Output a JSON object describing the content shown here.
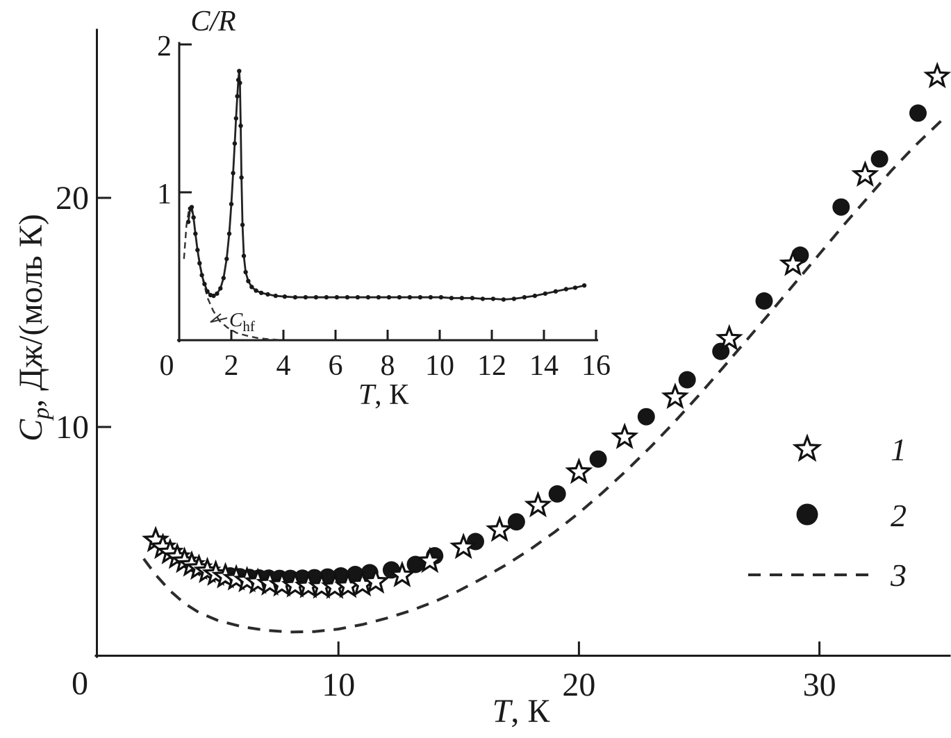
{
  "chart_data": [
    {
      "id": "main",
      "type": "scatter",
      "title": "",
      "xlabel": {
        "symbol": "T",
        "rest": ", К"
      },
      "ylabel": {
        "symbol": "C",
        "sub": "p",
        "rest": ", Дж/(моль К)"
      },
      "xlim": [
        0,
        35.4
      ],
      "ylim": [
        0,
        27.3
      ],
      "grid": false,
      "xticks": {
        "origin_label": "0",
        "values": [
          10,
          20,
          30
        ],
        "labels": [
          "10",
          "20",
          "30"
        ]
      },
      "yticks": {
        "values": [
          10,
          20
        ],
        "labels": [
          "10",
          "20"
        ]
      },
      "legend": {
        "position": "right-middle",
        "items": [
          {
            "label": "1",
            "marker": "open-star"
          },
          {
            "label": "2",
            "marker": "filled-circle"
          },
          {
            "label": "3",
            "marker": "dashed-line"
          }
        ]
      },
      "series": [
        {
          "name": "1",
          "marker": "open-star",
          "points": [
            [
              2.4,
              5.05
            ],
            [
              2.7,
              4.75
            ],
            [
              3.0,
              4.52
            ],
            [
              3.3,
              4.32
            ],
            [
              3.6,
              4.14
            ],
            [
              3.9,
              3.98
            ],
            [
              4.2,
              3.84
            ],
            [
              4.55,
              3.7
            ],
            [
              4.9,
              3.58
            ],
            [
              5.3,
              3.47
            ],
            [
              5.75,
              3.38
            ],
            [
              6.2,
              3.3
            ],
            [
              6.65,
              3.23
            ],
            [
              7.15,
              3.16
            ],
            [
              7.65,
              3.11
            ],
            [
              8.2,
              3.07
            ],
            [
              8.75,
              3.04
            ],
            [
              9.3,
              3.02
            ],
            [
              9.85,
              3.01
            ],
            [
              10.4,
              3.05
            ],
            [
              11.0,
              3.12
            ],
            [
              11.55,
              3.24
            ],
            [
              12.65,
              3.52
            ],
            [
              13.8,
              4.14
            ],
            [
              15.2,
              4.75
            ],
            [
              16.7,
              5.5
            ],
            [
              18.3,
              6.57
            ],
            [
              20.0,
              8.03
            ],
            [
              21.9,
              9.55
            ],
            [
              24.0,
              11.3
            ],
            [
              26.25,
              13.85
            ],
            [
              28.9,
              17.1
            ],
            [
              31.9,
              21.0
            ],
            [
              34.9,
              25.3
            ]
          ]
        },
        {
          "name": "2",
          "marker": "filled-circle",
          "points": [
            [
              5.5,
              3.5
            ],
            [
              5.9,
              3.46
            ],
            [
              6.3,
              3.43
            ],
            [
              6.7,
              3.41
            ],
            [
              7.1,
              3.4
            ],
            [
              7.55,
              3.39
            ],
            [
              8.0,
              3.39
            ],
            [
              8.5,
              3.4
            ],
            [
              9.0,
              3.42
            ],
            [
              9.55,
              3.45
            ],
            [
              10.1,
              3.5
            ],
            [
              10.7,
              3.56
            ],
            [
              11.3,
              3.64
            ],
            [
              12.2,
              3.76
            ],
            [
              13.2,
              4.0
            ],
            [
              14.0,
              4.38
            ],
            [
              15.7,
              5.0
            ],
            [
              17.4,
              5.86
            ],
            [
              19.1,
              7.08
            ],
            [
              20.8,
              8.6
            ],
            [
              22.8,
              10.45
            ],
            [
              24.5,
              12.06
            ],
            [
              25.9,
              13.3
            ],
            [
              27.7,
              15.5
            ],
            [
              29.2,
              17.5
            ],
            [
              30.9,
              19.6
            ],
            [
              32.5,
              21.7
            ],
            [
              34.1,
              23.7
            ]
          ]
        },
        {
          "name": "3",
          "marker": "none",
          "line": "dashed",
          "points": [
            [
              1.9,
              4.25
            ],
            [
              2.4,
              3.55
            ],
            [
              3.0,
              2.85
            ],
            [
              3.6,
              2.3
            ],
            [
              4.2,
              1.9
            ],
            [
              5.0,
              1.55
            ],
            [
              6.0,
              1.28
            ],
            [
              7.0,
              1.12
            ],
            [
              8.0,
              1.05
            ],
            [
              9.0,
              1.07
            ],
            [
              10.0,
              1.18
            ],
            [
              11.0,
              1.38
            ],
            [
              12.0,
              1.65
            ],
            [
              13.0,
              1.98
            ],
            [
              14.0,
              2.38
            ],
            [
              15.0,
              2.85
            ],
            [
              16.0,
              3.4
            ],
            [
              17.0,
              4.0
            ],
            [
              18.0,
              4.68
            ],
            [
              19.0,
              5.42
            ],
            [
              20.0,
              6.25
            ],
            [
              21.0,
              7.15
            ],
            [
              22.0,
              8.12
            ],
            [
              23.0,
              9.15
            ],
            [
              24.0,
              10.25
            ],
            [
              25.0,
              11.4
            ],
            [
              26.0,
              12.6
            ],
            [
              27.0,
              13.82
            ],
            [
              28.0,
              15.05
            ],
            [
              29.0,
              16.3
            ],
            [
              30.0,
              17.55
            ],
            [
              31.0,
              18.8
            ],
            [
              32.0,
              20.0
            ],
            [
              33.0,
              21.2
            ],
            [
              34.0,
              22.3
            ],
            [
              35.2,
              23.5
            ]
          ]
        }
      ]
    },
    {
      "id": "inset",
      "type": "line",
      "title": "C/R",
      "xlabel": {
        "symbol": "T",
        "rest": ", К"
      },
      "xlim": [
        0,
        16
      ],
      "ylim": [
        0,
        2
      ],
      "grid": false,
      "xticks": {
        "origin_label": "0",
        "values": [
          2,
          4,
          6,
          8,
          10,
          12,
          14,
          16
        ],
        "labels": [
          "2",
          "4",
          "6",
          "8",
          "10",
          "12",
          "14",
          "16"
        ]
      },
      "yticks": {
        "values": [
          1,
          2
        ],
        "labels": [
          "1",
          "2"
        ]
      },
      "series": [
        {
          "name": "C/R data",
          "marker": "small-dot",
          "line": "solid",
          "points": [
            [
              0.35,
              0.8
            ],
            [
              0.42,
              0.89
            ],
            [
              0.48,
              0.9
            ],
            [
              0.55,
              0.83
            ],
            [
              0.62,
              0.72
            ],
            [
              0.7,
              0.61
            ],
            [
              0.78,
              0.52
            ],
            [
              0.87,
              0.44
            ],
            [
              0.97,
              0.38
            ],
            [
              1.08,
              0.33
            ],
            [
              1.2,
              0.305
            ],
            [
              1.32,
              0.3
            ],
            [
              1.45,
              0.315
            ],
            [
              1.58,
              0.35
            ],
            [
              1.7,
              0.42
            ],
            [
              1.82,
              0.55
            ],
            [
              1.92,
              0.72
            ],
            [
              2.0,
              0.92
            ],
            [
              2.07,
              1.13
            ],
            [
              2.13,
              1.33
            ],
            [
              2.18,
              1.5
            ],
            [
              2.23,
              1.65
            ],
            [
              2.27,
              1.76
            ],
            [
              2.3,
              1.82
            ],
            [
              2.33,
              1.74
            ],
            [
              2.36,
              1.45
            ],
            [
              2.39,
              1.1
            ],
            [
              2.43,
              0.78
            ],
            [
              2.48,
              0.57
            ],
            [
              2.55,
              0.46
            ],
            [
              2.65,
              0.4
            ],
            [
              2.78,
              0.36
            ],
            [
              2.95,
              0.335
            ],
            [
              3.15,
              0.32
            ],
            [
              3.4,
              0.31
            ],
            [
              3.7,
              0.3
            ],
            [
              4.05,
              0.295
            ],
            [
              4.45,
              0.29
            ],
            [
              4.85,
              0.29
            ],
            [
              5.25,
              0.29
            ],
            [
              5.65,
              0.29
            ],
            [
              6.05,
              0.29
            ],
            [
              6.45,
              0.29
            ],
            [
              6.85,
              0.29
            ],
            [
              7.25,
              0.29
            ],
            [
              7.65,
              0.29
            ],
            [
              8.05,
              0.29
            ],
            [
              8.45,
              0.29
            ],
            [
              8.85,
              0.29
            ],
            [
              9.25,
              0.29
            ],
            [
              9.65,
              0.29
            ],
            [
              10.05,
              0.29
            ],
            [
              10.45,
              0.285
            ],
            [
              10.85,
              0.285
            ],
            [
              11.25,
              0.285
            ],
            [
              11.65,
              0.28
            ],
            [
              12.05,
              0.28
            ],
            [
              12.45,
              0.275
            ],
            [
              12.85,
              0.28
            ],
            [
              13.25,
              0.29
            ],
            [
              13.65,
              0.3
            ],
            [
              14.05,
              0.315
            ],
            [
              14.45,
              0.33
            ],
            [
              14.85,
              0.345
            ],
            [
              15.2,
              0.355
            ],
            [
              15.55,
              0.37
            ]
          ]
        },
        {
          "name": "Chf",
          "marker": "none",
          "line": "dashed",
          "label": {
            "symbol": "C",
            "sub": "hf"
          },
          "points": [
            [
              0.18,
              0.55
            ],
            [
              0.28,
              0.78
            ],
            [
              0.38,
              0.89
            ],
            [
              0.45,
              0.9
            ],
            [
              0.55,
              0.82
            ],
            [
              0.65,
              0.68
            ],
            [
              0.78,
              0.53
            ],
            [
              0.92,
              0.4
            ],
            [
              1.1,
              0.28
            ],
            [
              1.3,
              0.2
            ],
            [
              1.55,
              0.13
            ],
            [
              1.85,
              0.085
            ],
            [
              2.2,
              0.05
            ],
            [
              2.6,
              0.03
            ],
            [
              3.0,
              0.015
            ],
            [
              3.4,
              0.007
            ],
            [
              3.8,
              0.003
            ]
          ]
        }
      ]
    }
  ]
}
